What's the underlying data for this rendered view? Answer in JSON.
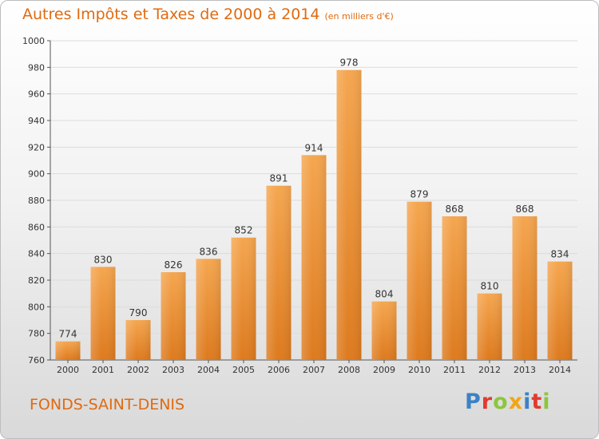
{
  "header": {
    "title": "Autres Impôts et Taxes de 2000 à 2014",
    "subtitle": "(en milliers d'€)"
  },
  "footer": {
    "city": "FONDS-SAINT-DENIS",
    "brand": "Proxiti",
    "brand_colors": [
      "#3b82c4",
      "#e23b2f",
      "#8cc63f",
      "#f2a516",
      "#3b82c4",
      "#e23b2f",
      "#8cc63f"
    ]
  },
  "colors": {
    "bar_top": "#f5a64f",
    "bar_bottom": "#dd7a1e",
    "title": "#e06a10"
  },
  "chart_data": {
    "type": "bar",
    "categories": [
      "2000",
      "2001",
      "2002",
      "2003",
      "2004",
      "2005",
      "2006",
      "2007",
      "2008",
      "2009",
      "2010",
      "2011",
      "2012",
      "2013",
      "2014"
    ],
    "values": [
      774,
      830,
      790,
      826,
      836,
      852,
      891,
      914,
      978,
      804,
      879,
      868,
      810,
      868,
      834
    ],
    "data_labels": [
      "774",
      "830",
      "790",
      "826",
      "836",
      "852",
      "891",
      "914",
      "978",
      "804",
      "879",
      "868",
      "810",
      "868",
      "834"
    ],
    "ylim": [
      760,
      1000
    ],
    "yticks": [
      760,
      780,
      800,
      820,
      840,
      860,
      880,
      900,
      920,
      940,
      960,
      980,
      1000
    ],
    "grid": true
  }
}
